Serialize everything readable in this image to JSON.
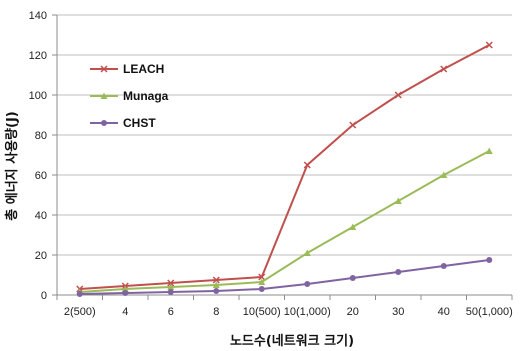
{
  "chart_data": {
    "type": "line",
    "title": "",
    "xlabel": "노드수(네트워크 크기)",
    "ylabel": "총 에너지 사용량(J)",
    "categories": [
      "2(500)",
      "4",
      "6",
      "8",
      "10(500)",
      "10(1,000)",
      "20",
      "30",
      "40",
      "50(1,000)"
    ],
    "ylim": [
      0,
      140
    ],
    "yticks": [
      0,
      20,
      40,
      60,
      80,
      100,
      120,
      140
    ],
    "grid": "horizontal",
    "legend_position": "top-left",
    "series": [
      {
        "name": "LEACH",
        "color": "#c0504d",
        "marker": "x",
        "values": [
          3,
          4.5,
          6,
          7.5,
          9,
          65,
          85,
          100,
          113,
          125
        ]
      },
      {
        "name": "Munaga",
        "color": "#9bbb59",
        "marker": "triangle",
        "values": [
          1.5,
          3,
          4,
          5,
          6.5,
          21,
          34,
          47,
          60,
          72
        ]
      },
      {
        "name": "CHST",
        "color": "#8064a2",
        "marker": "circle",
        "values": [
          0.5,
          1,
          1.5,
          2,
          3,
          5.5,
          8.5,
          11.5,
          14.5,
          17.5
        ]
      }
    ]
  }
}
